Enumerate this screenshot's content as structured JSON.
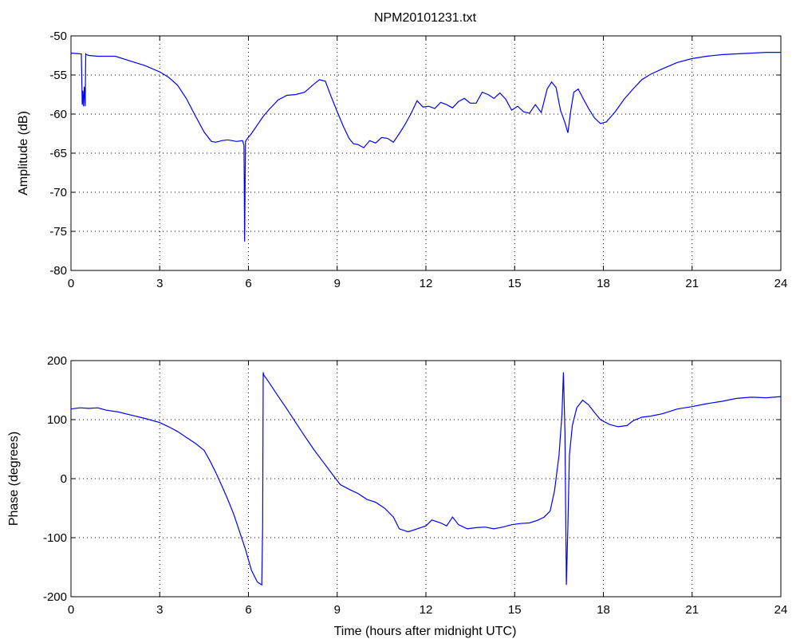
{
  "title": "NPM20101231.txt",
  "colors": {
    "series": "#0000ff",
    "axes": "#000000",
    "background": "#ffffff"
  },
  "chart_data": [
    {
      "type": "line",
      "title": "NPM20101231.txt",
      "xlabel": "",
      "ylabel": "Amplitude (dB)",
      "xlim": [
        0,
        24
      ],
      "ylim": [
        -80,
        -50
      ],
      "xticks": [
        "0",
        "3",
        "6",
        "9",
        "12",
        "15",
        "18",
        "21",
        "24"
      ],
      "yticks": [
        "-80",
        "-75",
        "-70",
        "-65",
        "-60",
        "-55",
        "-50"
      ],
      "grid": true,
      "series": [
        {
          "x": [
            0,
            0.35,
            0.38,
            0.4,
            0.42,
            0.45,
            0.48,
            0.5,
            0.52,
            0.6,
            0.9,
            1.5,
            2.0,
            2.5,
            3.0,
            3.3,
            3.6,
            3.9,
            4.2,
            4.5,
            4.75,
            4.9,
            5.1,
            5.3,
            5.6,
            5.8,
            5.85,
            5.87,
            5.9,
            5.95,
            6.1,
            6.3,
            6.5,
            6.7,
            7.0,
            7.3,
            7.6,
            7.9,
            8.2,
            8.4,
            8.6,
            8.8,
            9.0,
            9.2,
            9.4,
            9.55,
            9.7,
            9.9,
            10.1,
            10.3,
            10.5,
            10.7,
            10.9,
            11.1,
            11.3,
            11.5,
            11.7,
            11.9,
            12.1,
            12.3,
            12.5,
            12.7,
            12.9,
            13.1,
            13.3,
            13.5,
            13.7,
            13.9,
            14.1,
            14.3,
            14.5,
            14.7,
            14.9,
            15.1,
            15.3,
            15.5,
            15.7,
            15.9,
            16.1,
            16.25,
            16.4,
            16.55,
            16.7,
            16.8,
            16.9,
            17.0,
            17.15,
            17.3,
            17.5,
            17.7,
            17.9,
            18.1,
            18.4,
            18.7,
            19.0,
            19.3,
            19.6,
            20.0,
            20.5,
            21.0,
            21.5,
            22.0,
            22.5,
            23.0,
            23.5,
            24.0
          ],
          "y": [
            -52.2,
            -52.3,
            -58.8,
            -57.0,
            -59.0,
            -56.5,
            -59.0,
            -52.3,
            -52.4,
            -52.5,
            -52.6,
            -52.6,
            -53.2,
            -53.8,
            -54.6,
            -55.3,
            -56.3,
            -58.0,
            -60.2,
            -62.3,
            -63.5,
            -63.6,
            -63.4,
            -63.3,
            -63.5,
            -63.4,
            -64.0,
            -76.3,
            -63.5,
            -63.2,
            -62.5,
            -61.4,
            -60.3,
            -59.4,
            -58.2,
            -57.6,
            -57.5,
            -57.2,
            -56.2,
            -55.6,
            -55.8,
            -57.8,
            -59.7,
            -61.5,
            -63.1,
            -63.8,
            -63.9,
            -64.3,
            -63.4,
            -63.7,
            -63.0,
            -63.1,
            -63.6,
            -62.5,
            -61.3,
            -59.9,
            -58.3,
            -59.1,
            -59.0,
            -59.3,
            -58.5,
            -58.8,
            -59.2,
            -58.4,
            -58.0,
            -58.6,
            -58.6,
            -57.2,
            -57.5,
            -58.0,
            -57.3,
            -58.1,
            -59.5,
            -59.0,
            -59.7,
            -59.9,
            -58.8,
            -59.8,
            -56.8,
            -55.9,
            -56.6,
            -59.5,
            -61.1,
            -62.4,
            -59.5,
            -57.2,
            -56.8,
            -57.9,
            -59.3,
            -60.5,
            -61.2,
            -61.0,
            -59.7,
            -58.1,
            -56.8,
            -55.6,
            -54.9,
            -54.2,
            -53.4,
            -52.9,
            -52.6,
            -52.4,
            -52.3,
            -52.2,
            -52.1,
            -52.1
          ]
        }
      ]
    },
    {
      "type": "line",
      "title": "",
      "xlabel": "Time (hours after midnight UTC)",
      "ylabel": "Phase (degrees)",
      "xlim": [
        0,
        24
      ],
      "ylim": [
        -200,
        200
      ],
      "xticks": [
        "0",
        "3",
        "6",
        "9",
        "12",
        "15",
        "18",
        "21",
        "24"
      ],
      "yticks": [
        "-200",
        "-100",
        "0",
        "100",
        "200"
      ],
      "grid": true,
      "series": [
        {
          "x": [
            0,
            0.3,
            0.6,
            0.9,
            1.2,
            1.6,
            2.0,
            2.5,
            3.0,
            3.3,
            3.6,
            3.9,
            4.2,
            4.5,
            4.7,
            4.9,
            5.1,
            5.3,
            5.5,
            5.7,
            5.9,
            6.1,
            6.3,
            6.45,
            6.48,
            6.5,
            6.52,
            6.6,
            6.8,
            7.0,
            7.3,
            7.6,
            7.9,
            8.2,
            8.5,
            8.8,
            9.1,
            9.4,
            9.7,
            10.0,
            10.3,
            10.6,
            10.9,
            11.1,
            11.4,
            11.7,
            12.0,
            12.2,
            12.5,
            12.7,
            12.9,
            13.1,
            13.4,
            13.7,
            14.0,
            14.3,
            14.6,
            14.9,
            15.2,
            15.5,
            15.8,
            16.0,
            16.2,
            16.35,
            16.5,
            16.6,
            16.65,
            16.7,
            16.75,
            16.8,
            16.85,
            16.95,
            17.1,
            17.3,
            17.5,
            17.7,
            17.9,
            18.2,
            18.5,
            18.8,
            19.0,
            19.3,
            19.6,
            20.0,
            20.5,
            21.0,
            21.5,
            22.0,
            22.5,
            23.0,
            23.5,
            24.0
          ],
          "y": [
            118,
            120,
            119,
            120,
            116,
            113,
            108,
            102,
            95,
            88,
            80,
            70,
            60,
            48,
            30,
            10,
            -12,
            -35,
            -60,
            -90,
            -120,
            -155,
            -175,
            -180,
            -80,
            180,
            175,
            170,
            155,
            140,
            118,
            95,
            72,
            50,
            30,
            10,
            -10,
            -18,
            -25,
            -35,
            -40,
            -50,
            -65,
            -85,
            -90,
            -85,
            -80,
            -70,
            -75,
            -80,
            -65,
            -78,
            -85,
            -83,
            -82,
            -85,
            -82,
            -78,
            -76,
            -75,
            -70,
            -65,
            -55,
            -20,
            40,
            110,
            180,
            80,
            -180,
            -80,
            40,
            90,
            120,
            133,
            125,
            112,
            100,
            92,
            88,
            90,
            98,
            104,
            106,
            110,
            118,
            122,
            127,
            131,
            136,
            138,
            137,
            139
          ]
        }
      ]
    }
  ]
}
